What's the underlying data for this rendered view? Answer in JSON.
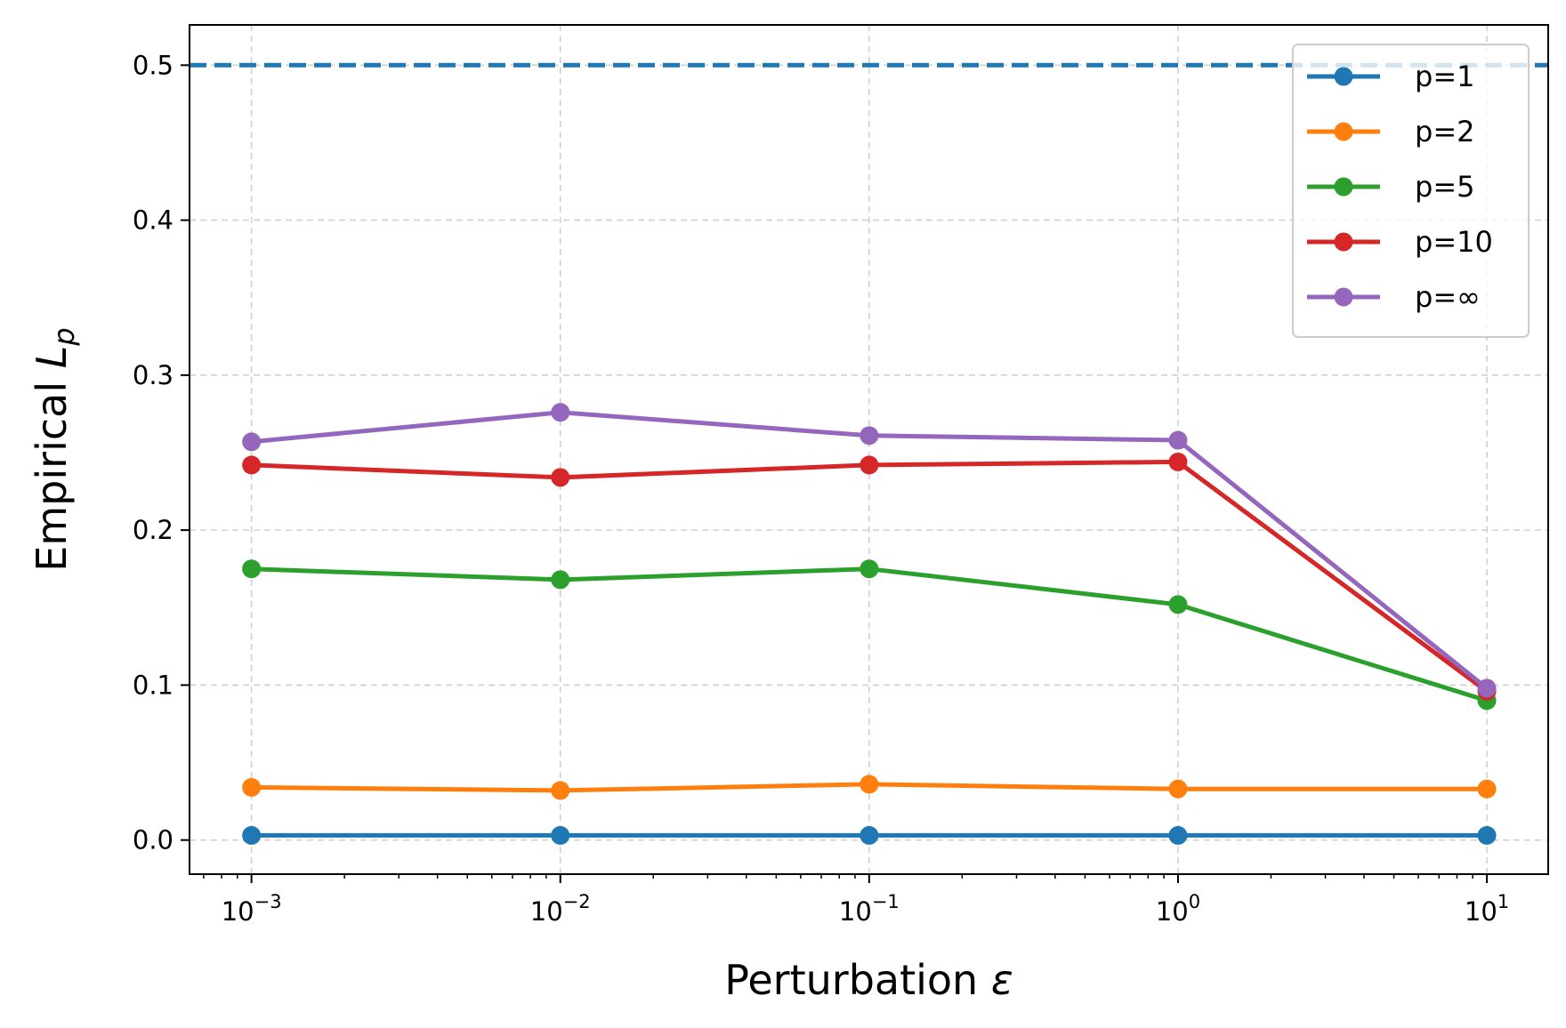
{
  "chart_data": {
    "type": "line",
    "xlabel_text": "Perturbation ",
    "xlabel_symbol": "ε",
    "ylabel_text": "Empirical ",
    "ylabel_symbol": "L",
    "ylabel_subscript": "p",
    "x_scale": "log",
    "x": [
      0.001,
      0.01,
      0.1,
      1,
      10
    ],
    "xlim": [
      0.00063,
      15.8
    ],
    "ylim": [
      -0.022,
      0.526
    ],
    "x_ticks": [
      {
        "value": 0.001,
        "base": "10",
        "exp": "−3"
      },
      {
        "value": 0.01,
        "base": "10",
        "exp": "−2"
      },
      {
        "value": 0.1,
        "base": "10",
        "exp": "−1"
      },
      {
        "value": 1,
        "base": "10",
        "exp": "0"
      },
      {
        "value": 10,
        "base": "10",
        "exp": "1"
      }
    ],
    "y_ticks": [
      {
        "value": 0.0,
        "label": "0.0"
      },
      {
        "value": 0.1,
        "label": "0.1"
      },
      {
        "value": 0.2,
        "label": "0.2"
      },
      {
        "value": 0.3,
        "label": "0.3"
      },
      {
        "value": 0.4,
        "label": "0.4"
      },
      {
        "value": 0.5,
        "label": "0.5"
      }
    ],
    "grid": true,
    "legend_position": "top-right",
    "reference_line": {
      "y": 0.5,
      "style": "dashed",
      "color": "#1f77b4"
    },
    "series": [
      {
        "name": "p=1",
        "color": "#1f77b4",
        "values": [
          0.003,
          0.003,
          0.003,
          0.003,
          0.003
        ]
      },
      {
        "name": "p=2",
        "color": "#ff7f0e",
        "values": [
          0.034,
          0.032,
          0.036,
          0.033,
          0.033
        ]
      },
      {
        "name": "p=5",
        "color": "#2ca02c",
        "values": [
          0.175,
          0.168,
          0.175,
          0.152,
          0.09
        ]
      },
      {
        "name": "p=10",
        "color": "#d62728",
        "values": [
          0.242,
          0.234,
          0.242,
          0.244,
          0.096
        ]
      },
      {
        "name": "p=∞",
        "color": "#9467bd",
        "values": [
          0.257,
          0.276,
          0.261,
          0.258,
          0.098
        ]
      }
    ]
  }
}
